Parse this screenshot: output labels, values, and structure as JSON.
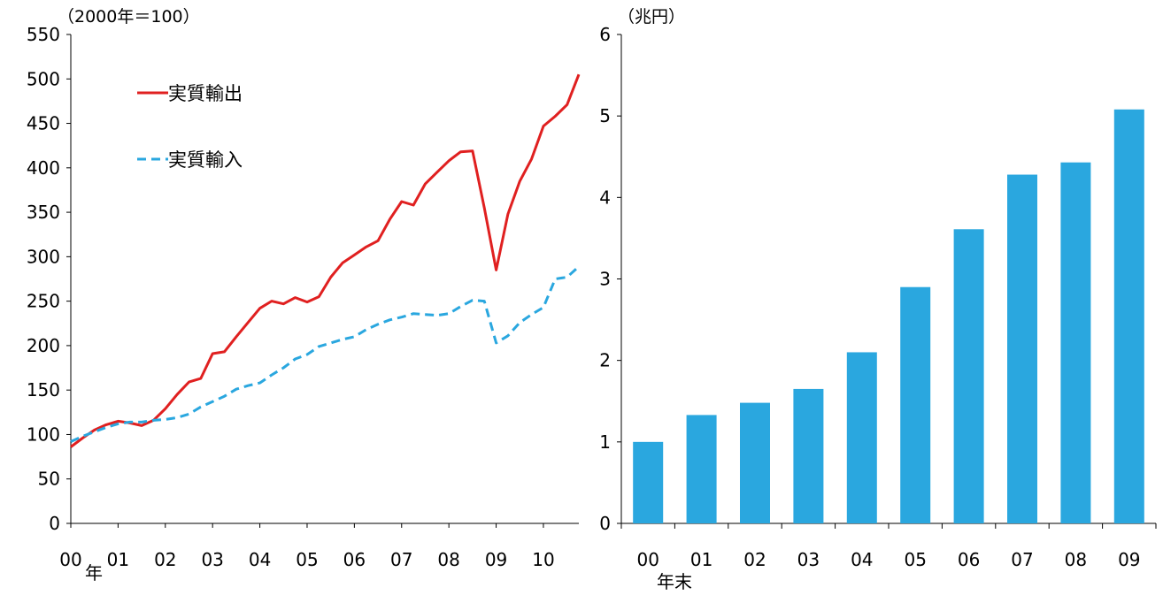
{
  "chart_data": [
    {
      "type": "line",
      "unit_label": "（2000年＝100）",
      "xlabel": "年",
      "ylim": [
        0,
        550
      ],
      "y_ticks": [
        0,
        50,
        100,
        150,
        200,
        250,
        300,
        350,
        400,
        450,
        500,
        550
      ],
      "x_ticks": [
        "00",
        "01",
        "02",
        "03",
        "04",
        "05",
        "06",
        "07",
        "08",
        "09",
        "10"
      ],
      "x_range": [
        2000,
        2010.75
      ],
      "legend_position": "top-left",
      "series": [
        {
          "name": "実質輸出",
          "color": "#e02020",
          "dash": "solid",
          "points": [
            [
              2000.0,
              86
            ],
            [
              2000.25,
              96
            ],
            [
              2000.5,
              105
            ],
            [
              2000.75,
              111
            ],
            [
              2001.0,
              115
            ],
            [
              2001.25,
              113
            ],
            [
              2001.5,
              110
            ],
            [
              2001.75,
              116
            ],
            [
              2002.0,
              129
            ],
            [
              2002.25,
              145
            ],
            [
              2002.5,
              159
            ],
            [
              2002.75,
              163
            ],
            [
              2003.0,
              191
            ],
            [
              2003.25,
              193
            ],
            [
              2003.5,
              210
            ],
            [
              2003.75,
              226
            ],
            [
              2004.0,
              242
            ],
            [
              2004.25,
              250
            ],
            [
              2004.5,
              247
            ],
            [
              2004.75,
              254
            ],
            [
              2005.0,
              249
            ],
            [
              2005.25,
              255
            ],
            [
              2005.5,
              277
            ],
            [
              2005.75,
              293
            ],
            [
              2006.0,
              302
            ],
            [
              2006.25,
              311
            ],
            [
              2006.5,
              318
            ],
            [
              2006.75,
              342
            ],
            [
              2007.0,
              362
            ],
            [
              2007.25,
              358
            ],
            [
              2007.5,
              382
            ],
            [
              2007.75,
              395
            ],
            [
              2008.0,
              408
            ],
            [
              2008.25,
              418
            ],
            [
              2008.5,
              419
            ],
            [
              2008.75,
              355
            ],
            [
              2009.0,
              285
            ],
            [
              2009.25,
              348
            ],
            [
              2009.5,
              385
            ],
            [
              2009.75,
              410
            ],
            [
              2010.0,
              447
            ],
            [
              2010.25,
              458
            ],
            [
              2010.5,
              471
            ],
            [
              2010.75,
              505
            ]
          ]
        },
        {
          "name": "実質輸入",
          "color": "#2aa7df",
          "dash": "dashed",
          "points": [
            [
              2000.0,
              92
            ],
            [
              2000.25,
              98
            ],
            [
              2000.5,
              103
            ],
            [
              2000.75,
              108
            ],
            [
              2001.0,
              112
            ],
            [
              2001.25,
              114
            ],
            [
              2001.5,
              114
            ],
            [
              2001.75,
              116
            ],
            [
              2002.0,
              117
            ],
            [
              2002.25,
              119
            ],
            [
              2002.5,
              123
            ],
            [
              2002.75,
              131
            ],
            [
              2003.0,
              137
            ],
            [
              2003.25,
              143
            ],
            [
              2003.5,
              151
            ],
            [
              2003.75,
              155
            ],
            [
              2004.0,
              158
            ],
            [
              2004.25,
              167
            ],
            [
              2004.5,
              175
            ],
            [
              2004.75,
              185
            ],
            [
              2005.0,
              190
            ],
            [
              2005.25,
              199
            ],
            [
              2005.5,
              203
            ],
            [
              2005.75,
              207
            ],
            [
              2006.0,
              210
            ],
            [
              2006.25,
              218
            ],
            [
              2006.5,
              224
            ],
            [
              2006.75,
              229
            ],
            [
              2007.0,
              232
            ],
            [
              2007.25,
              236
            ],
            [
              2007.5,
              235
            ],
            [
              2007.75,
              234
            ],
            [
              2008.0,
              236
            ],
            [
              2008.25,
              244
            ],
            [
              2008.5,
              251
            ],
            [
              2008.75,
              250
            ],
            [
              2009.0,
              203
            ],
            [
              2009.25,
              211
            ],
            [
              2009.5,
              226
            ],
            [
              2009.75,
              235
            ],
            [
              2010.0,
              243
            ],
            [
              2010.25,
              275
            ],
            [
              2010.5,
              277
            ],
            [
              2010.75,
              289
            ]
          ]
        }
      ]
    },
    {
      "type": "bar",
      "unit_label": "（兆円）",
      "xlabel": "年末",
      "ylim": [
        0,
        6
      ],
      "y_ticks": [
        0,
        1,
        2,
        3,
        4,
        5,
        6
      ],
      "categories": [
        "00",
        "01",
        "02",
        "03",
        "04",
        "05",
        "06",
        "07",
        "08",
        "09"
      ],
      "values": [
        1.0,
        1.33,
        1.48,
        1.65,
        2.1,
        2.9,
        3.61,
        4.28,
        4.43,
        5.08
      ],
      "color": "#2aa7df"
    }
  ]
}
